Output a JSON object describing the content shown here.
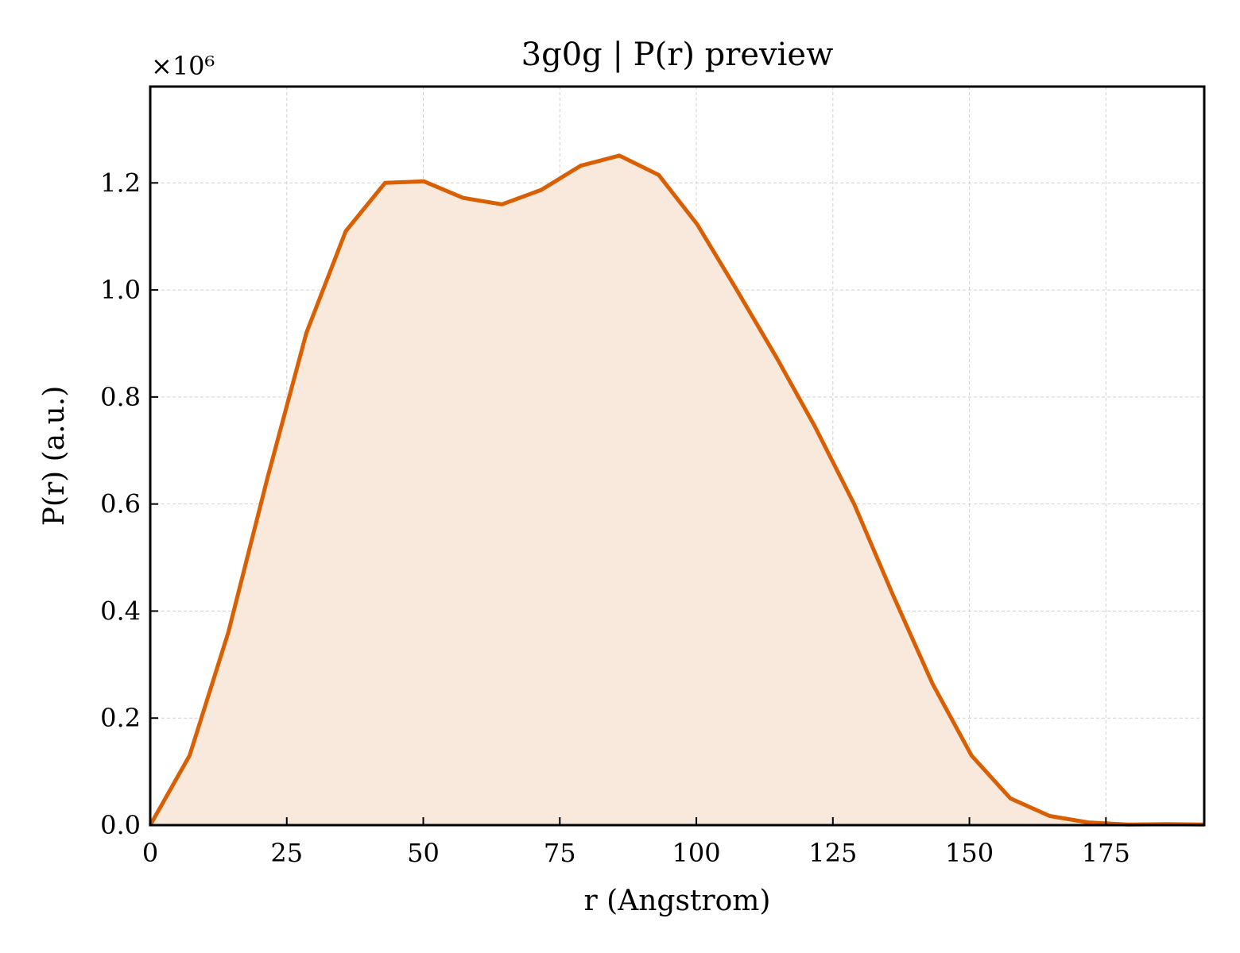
{
  "chart_data": {
    "type": "area",
    "title": "3g0g | P(r) preview",
    "xlabel": "r (Angstrom)",
    "ylabel": "P(r) (a.u.)",
    "y_multiplier": "×10⁶",
    "xlim": [
      0,
      193
    ],
    "ylim": [
      0,
      1.38
    ],
    "grid": true,
    "line_color": "#d95f02",
    "fill_color": "#f9e9dd",
    "x_ticks": [
      "0",
      "25",
      "50",
      "75",
      "100",
      "125",
      "150",
      "175"
    ],
    "x_tick_values": [
      0,
      25,
      50,
      75,
      100,
      125,
      150,
      175
    ],
    "y_ticks": [
      "0.0",
      "0.2",
      "0.4",
      "0.6",
      "0.8",
      "1.0",
      "1.2"
    ],
    "y_tick_values": [
      0,
      0.2,
      0.4,
      0.6,
      0.8,
      1.0,
      1.2
    ],
    "series": [
      {
        "x": [
          0,
          7.2,
          14.3,
          21.5,
          28.6,
          35.8,
          43.0,
          50.1,
          57.3,
          64.4,
          71.6,
          78.8,
          85.9,
          93.1,
          100.2,
          107.4,
          114.6,
          121.7,
          128.9,
          136.0,
          143.2,
          150.4,
          157.5,
          164.7,
          171.8,
          179.0,
          186.2,
          193.0
        ],
        "values": [
          0.0,
          0.13,
          0.36,
          0.65,
          0.92,
          1.11,
          1.2,
          1.203,
          1.172,
          1.16,
          1.187,
          1.232,
          1.251,
          1.215,
          1.122,
          1.0,
          0.875,
          0.745,
          0.6,
          0.43,
          0.265,
          0.13,
          0.05,
          0.017,
          0.005,
          0.001,
          0.002,
          0.001
        ]
      }
    ]
  }
}
